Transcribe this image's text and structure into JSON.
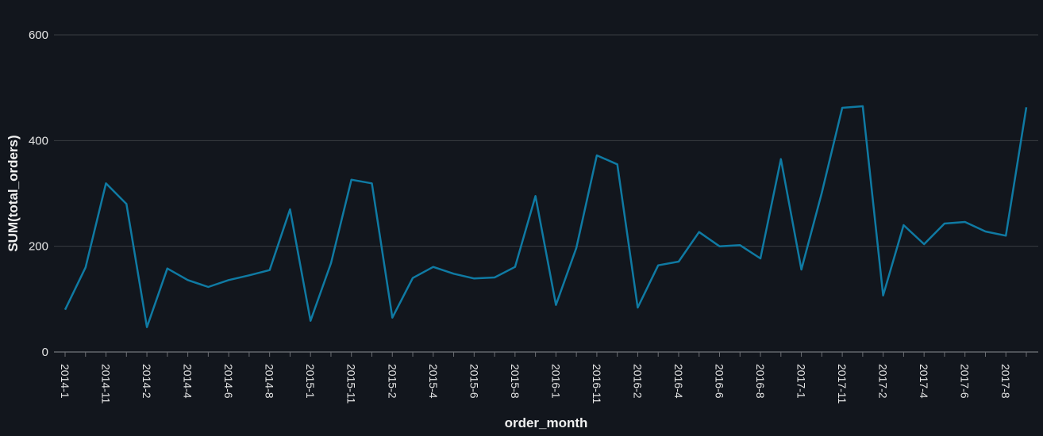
{
  "chart_data": {
    "type": "line",
    "xlabel": "order_month",
    "ylabel": "SUM(total_orders)",
    "ylim": [
      0,
      600
    ],
    "yticks": [
      0,
      200,
      400,
      600
    ],
    "grid": true,
    "line_color": "#0f7aa3",
    "background": "#12161d",
    "x_tick_labels": [
      "2014-1",
      "2014-11",
      "2014-2",
      "2014-4",
      "2014-6",
      "2014-8",
      "2015-1",
      "2015-11",
      "2015-2",
      "2015-4",
      "2015-6",
      "2015-8",
      "2016-1",
      "2016-11",
      "2016-2",
      "2016-4",
      "2016-6",
      "2016-8",
      "2017-1",
      "2017-11",
      "2017-2",
      "2017-4",
      "2017-6",
      "2017-8"
    ],
    "series": [
      {
        "values": [
          80,
          160,
          319,
          280,
          47,
          158,
          136,
          123,
          136,
          145,
          155,
          270,
          59,
          168,
          326,
          319,
          65,
          140,
          161,
          148,
          139,
          141,
          161,
          295,
          89,
          197,
          372,
          355,
          84,
          164,
          171,
          227,
          200,
          202,
          177,
          365,
          156,
          301,
          462,
          465,
          107,
          240,
          204,
          243,
          246,
          228,
          220,
          463
        ]
      }
    ]
  }
}
